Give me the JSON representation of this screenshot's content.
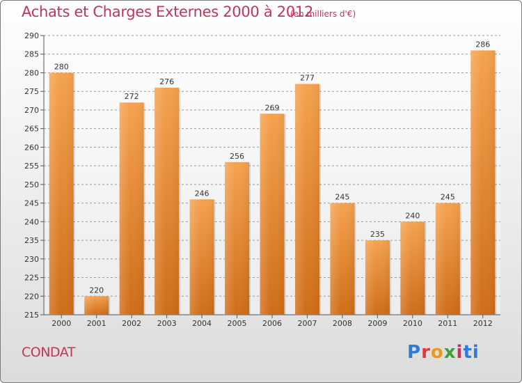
{
  "header": {
    "title": "Achats et Charges Externes 2000 à 2012",
    "unit": "(en milliers d'€)"
  },
  "footer": {
    "city": "CONDAT",
    "logo_text": "Proxiti"
  },
  "colors": {
    "title": "#c23458",
    "bar_light": "#f5a24e",
    "bar_dark": "#cf6d17",
    "grid": "#9a9a9a"
  },
  "chart_data": {
    "type": "bar",
    "title": "Achats et Charges Externes 2000 à 2012",
    "subtitle": "(en milliers d'€)",
    "xlabel": "",
    "ylabel": "",
    "categories": [
      "2000",
      "2001",
      "2002",
      "2003",
      "2004",
      "2005",
      "2006",
      "2007",
      "2008",
      "2009",
      "2010",
      "2011",
      "2012"
    ],
    "values": [
      280,
      220,
      272,
      276,
      246,
      256,
      269,
      277,
      245,
      235,
      240,
      245,
      286
    ],
    "ylim": [
      215,
      290
    ],
    "yticks": [
      215,
      220,
      225,
      230,
      235,
      240,
      245,
      250,
      255,
      260,
      265,
      270,
      275,
      280,
      285,
      290
    ],
    "grid": "horizontal dashed",
    "data_labels": true,
    "legend": "none"
  }
}
